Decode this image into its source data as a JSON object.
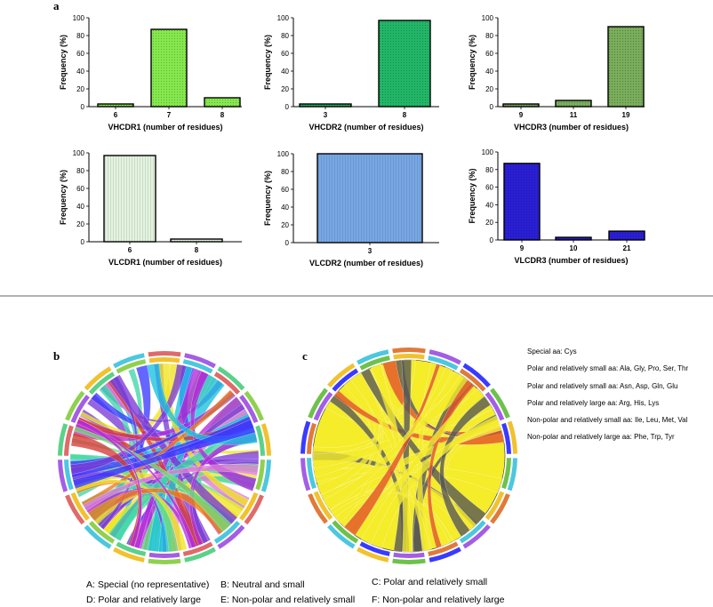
{
  "panel_labels": {
    "a": "a",
    "b": "b",
    "c": "c"
  },
  "chart_data": [
    {
      "type": "bar",
      "xlabel": "VHCDR1 (number of residues)",
      "ylabel": "Frequency (%)",
      "ylim": [
        0,
        100
      ],
      "yticks": [
        0,
        20,
        40,
        60,
        80,
        100
      ],
      "categories": [
        "6",
        "7",
        "8"
      ],
      "values": [
        3,
        87,
        10
      ],
      "color": "#86ea4e"
    },
    {
      "type": "bar",
      "xlabel": "VHCDR2 (number of residues)",
      "ylabel": "Frequency (%)",
      "ylim": [
        0,
        100
      ],
      "yticks": [
        0,
        20,
        40,
        60,
        80,
        100
      ],
      "categories": [
        "3",
        "8"
      ],
      "values": [
        3,
        97
      ],
      "color": "#22b768"
    },
    {
      "type": "bar",
      "xlabel": "VHCDR3 (number of residues)",
      "ylabel": "Frequency (%)",
      "ylim": [
        0,
        100
      ],
      "yticks": [
        0,
        20,
        40,
        60,
        80,
        100
      ],
      "categories": [
        "9",
        "11",
        "19"
      ],
      "values": [
        3,
        7,
        90
      ],
      "color": "#7aae5c"
    },
    {
      "type": "bar",
      "xlabel": "VLCDR1 (number of residues)",
      "ylabel": "Frequency (%)",
      "ylim": [
        0,
        100
      ],
      "yticks": [
        0,
        20,
        40,
        60,
        80,
        100
      ],
      "categories": [
        "6",
        "8"
      ],
      "values": [
        97,
        3
      ],
      "color": "#e3f4df"
    },
    {
      "type": "bar",
      "xlabel": "VLCDR2 (number of residues)",
      "ylabel": "Frequency (%)",
      "ylim": [
        0,
        100
      ],
      "yticks": [
        0,
        20,
        40,
        60,
        80,
        100
      ],
      "categories": [
        "3"
      ],
      "values": [
        100
      ],
      "color": "#78a8e6"
    },
    {
      "type": "bar",
      "xlabel": "VLCDR3 (number of residues)",
      "ylabel": "Frequency (%)",
      "ylim": [
        0,
        100
      ],
      "yticks": [
        0,
        20,
        40,
        60,
        80,
        100
      ],
      "categories": [
        "9",
        "10",
        "21"
      ],
      "values": [
        87,
        3,
        10
      ],
      "color": "#2a1fd6"
    }
  ],
  "chord_colors": {
    "b": [
      "#3a3aff",
      "#f07a1a",
      "#b22ad8",
      "#3fd6a8",
      "#f0e41e",
      "#d63a3a",
      "#7a3ad6",
      "#19c0e0",
      "#e07ad6",
      "#6fe07a"
    ],
    "c": [
      "#f5ec2a",
      "#e2502a",
      "#545454",
      "#3a3aff"
    ]
  },
  "aa_legend": [
    "Special aa: Cys",
    "Polar and relatively small aa: Ala, Gly, Pro, Ser, Thr",
    "Polar and relatively small aa: Asn, Asp, Gln, Glu",
    "Polar and relatively large aa: Arg, His, Lys",
    "Non-polar and relatively small aa: Ile, Leu, Met, Val",
    "Non-polar and relatively large aa: Phe, Trp, Tyr"
  ],
  "categories_legend": [
    "A: Special (no representative)",
    "B: Neutral and small",
    "C: Polar and relatively small",
    "D: Polar and relatively large",
    "E: Non-polar and relatively small",
    "F: Non-polar and relatively large"
  ]
}
